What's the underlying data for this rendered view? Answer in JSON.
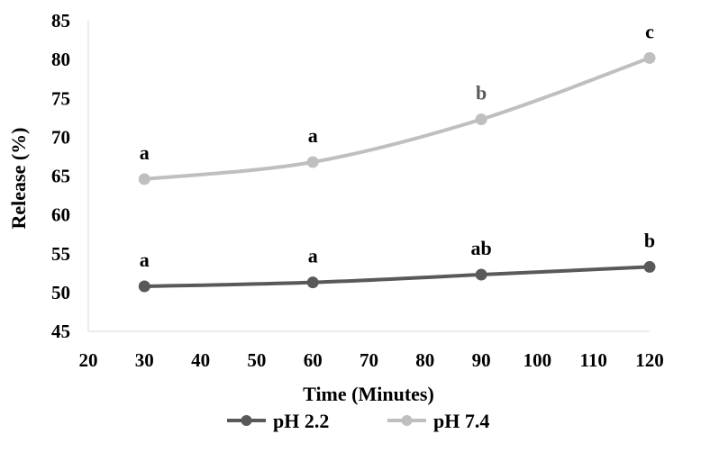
{
  "chart_data": {
    "type": "line",
    "title": "",
    "xlabel": "Time (Minutes)",
    "ylabel": "Release (%)",
    "xlim": [
      20,
      120
    ],
    "ylim": [
      45,
      85
    ],
    "x_ticks": [
      20,
      30,
      40,
      50,
      60,
      70,
      80,
      90,
      100,
      110,
      120
    ],
    "y_ticks": [
      45,
      50,
      55,
      60,
      65,
      70,
      75,
      80,
      85
    ],
    "grid": false,
    "legend_position": "bottom",
    "series": [
      {
        "name": "pH 2.2",
        "color": "#595959",
        "x": [
          30,
          60,
          90,
          120
        ],
        "values": [
          50.8,
          51.3,
          52.3,
          53.3
        ],
        "labels": [
          "a",
          "a",
          "ab",
          "b"
        ]
      },
      {
        "name": "pH 7.4",
        "color": "#bfbfbf",
        "x": [
          30,
          60,
          90,
          120
        ],
        "values": [
          64.6,
          66.8,
          72.3,
          80.2
        ],
        "labels": [
          "a",
          "a",
          "b",
          "c"
        ]
      }
    ]
  }
}
